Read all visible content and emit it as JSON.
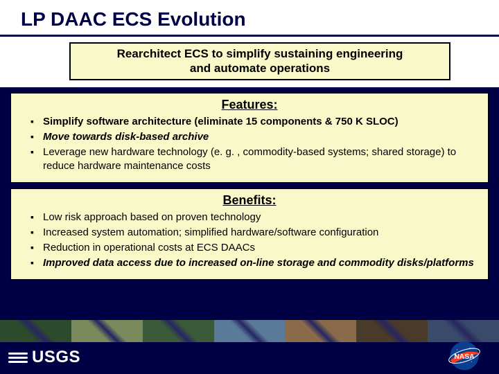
{
  "title": "LP DAAC ECS Evolution",
  "subtitle_line1": "Rearchitect ECS to simplify sustaining engineering",
  "subtitle_line2": "and automate operations",
  "features": {
    "header": "Features:",
    "items": [
      {
        "text": "Simplify software architecture (eliminate 15 components & 750 K SLOC)",
        "style": "bold"
      },
      {
        "text": "Move towards disk-based archive",
        "style": "bold-italic"
      },
      {
        "text": "Leverage new hardware technology (e. g. , commodity-based systems; shared storage) to reduce hardware maintenance costs",
        "style": "normal"
      }
    ]
  },
  "benefits": {
    "header": "Benefits:",
    "items": [
      {
        "text": "Low risk approach based on proven technology",
        "style": "normal"
      },
      {
        "text": "Increased system automation; simplified hardware/software configuration",
        "style": "normal"
      },
      {
        "text": "Reduction in operational costs at ECS DAACs",
        "style": "normal"
      },
      {
        "text": "Improved data access due to increased on-line storage and commodity disks/platforms",
        "style": "bold-italic"
      }
    ]
  },
  "footer": {
    "usgs_label": "USGS",
    "nasa_label": "NASA",
    "strip_colors": [
      "#2c4a2c",
      "#7a8a5c",
      "#3a5a3a",
      "#5a7a9a",
      "#8a6a4a",
      "#4a3a2a",
      "#3a4a6a"
    ]
  },
  "colors": {
    "slide_bg": "#000045",
    "panel_bg": "#f9f8c8",
    "title_underline": "#000045",
    "nasa_blue": "#0b3d91",
    "nasa_red": "#fc3d21"
  }
}
